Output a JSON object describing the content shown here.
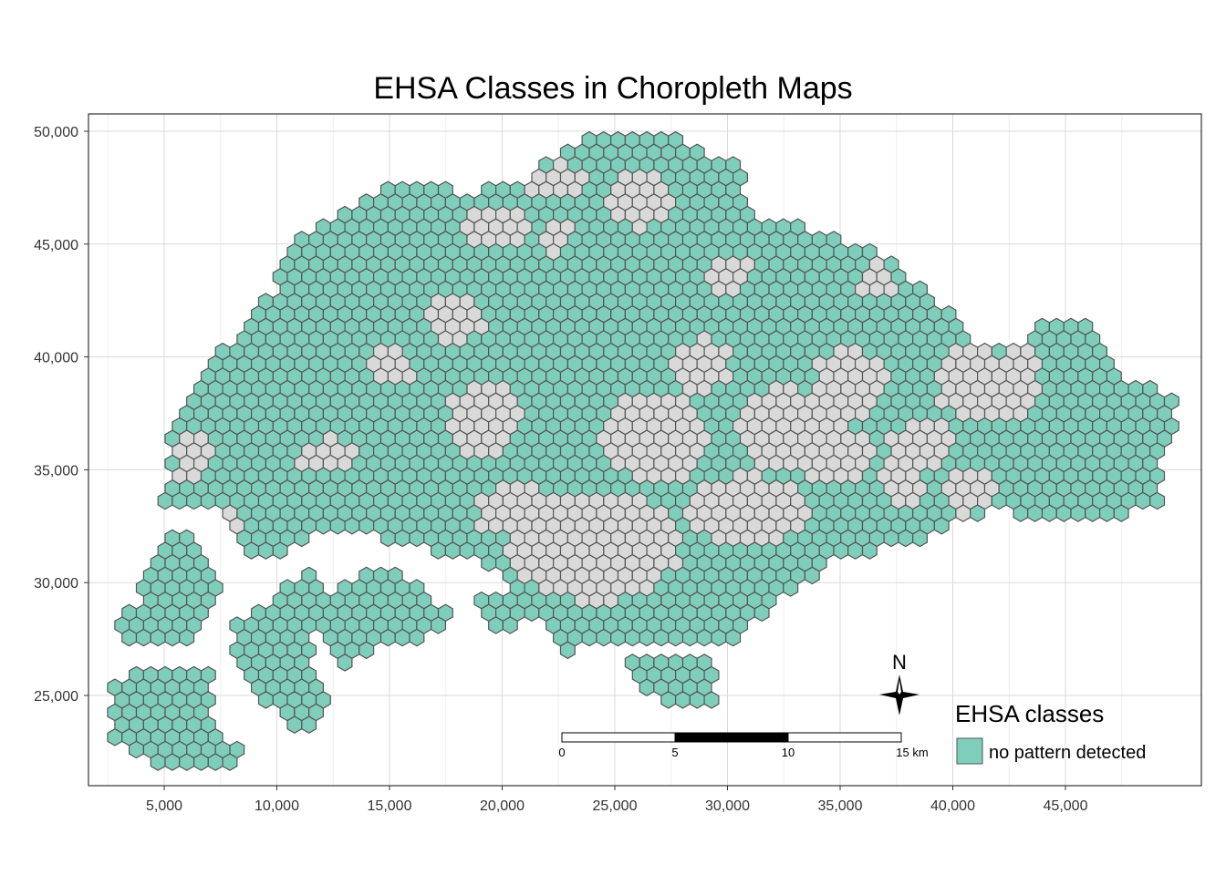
{
  "title": "EHSA Classes in Choropleth Maps",
  "x_axis": {
    "ticks": [
      "5,000",
      "10,000",
      "15,000",
      "20,000",
      "25,000",
      "30,000",
      "35,000",
      "40,000",
      "45,000"
    ],
    "values": [
      5000,
      10000,
      15000,
      20000,
      25000,
      30000,
      35000,
      40000,
      45000
    ],
    "range": [
      2100,
      50900
    ]
  },
  "y_axis": {
    "ticks": [
      "25,000",
      "30,000",
      "35,000",
      "40,000",
      "45,000",
      "50,000"
    ],
    "values": [
      25000,
      30000,
      35000,
      40000,
      45000,
      50000
    ],
    "range": [
      20800,
      50800
    ]
  },
  "grid": true,
  "legend": {
    "title": "EHSA classes",
    "placement": "bottom-right",
    "items": [
      {
        "label": "no pattern detected",
        "color": "#7fcdbb"
      }
    ]
  },
  "colors": {
    "classified": "#7fcdbb",
    "not_classified": "#d9d9d9",
    "hex_border": "#555555"
  },
  "north_arrow": {
    "label": "N"
  },
  "scale_bar": {
    "labels": [
      "0",
      "5",
      "10",
      "15 km"
    ]
  }
}
